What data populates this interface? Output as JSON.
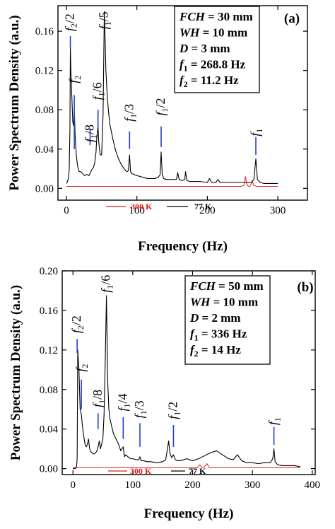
{
  "chart_data": [
    {
      "type": "line",
      "panel_label": "(a)",
      "xlabel": "Frequency (Hz)",
      "ylabel": "Power Spectrum Density (a.u.)",
      "xlim": [
        -12,
        342
      ],
      "ylim": [
        -0.012,
        0.186
      ],
      "xticks": [
        0,
        100,
        200,
        300
      ],
      "yticks": [
        0.0,
        0.04,
        0.08,
        0.12,
        0.16
      ],
      "ytick_labels": [
        "0.00",
        "0.04",
        "0.08",
        "0.12",
        "0.16"
      ],
      "grid": false,
      "info_lines": [
        {
          "italic": "FCH",
          "rest": " = 30 mm"
        },
        {
          "italic": "WH",
          "rest": " = 10 mm"
        },
        {
          "italic": "D",
          "rest": " = 3 mm"
        },
        {
          "italic": "f",
          "sub": "1",
          "rest": " = 268.8 Hz"
        },
        {
          "italic": "f",
          "sub": "2",
          "rest": " = 11.2 Hz"
        }
      ],
      "legend": [
        {
          "name": "300 K",
          "color": "#e31a1c"
        },
        {
          "name": "77 K",
          "color": "#000000"
        }
      ],
      "annotations": [
        {
          "label": "f",
          "sub": "2",
          "suffix": "/2",
          "x": 5.6,
          "line_y": [
            0.142,
            0.155
          ],
          "text_y": 0.16
        },
        {
          "label": "f",
          "sub": "2",
          "suffix": "",
          "x": 11.2,
          "line_y": [
            0.04,
            0.095
          ],
          "text_y": 0.107
        },
        {
          "label": "f",
          "sub": "1",
          "suffix": "/8",
          "x": 33.6,
          "line_y": [
            0.044,
            0.06
          ],
          "text_y": 0.047
        },
        {
          "label": "f",
          "sub": "1",
          "suffix": "/6",
          "x": 44.8,
          "line_y": [
            0.062,
            0.08
          ],
          "text_y": 0.09
        },
        {
          "label": "f",
          "sub": "1",
          "suffix": "/5",
          "x": 53.8,
          "line_y": null,
          "text_y": 0.162
        },
        {
          "label": "f",
          "sub": "1",
          "suffix": "/3",
          "x": 89.6,
          "line_y": [
            0.04,
            0.058
          ],
          "text_y": 0.068
        },
        {
          "label": "f",
          "sub": "1",
          "suffix": "/2",
          "x": 134.4,
          "line_y": [
            0.042,
            0.063
          ],
          "text_y": 0.074
        },
        {
          "label": "f",
          "sub": "1",
          "suffix": "",
          "x": 268.8,
          "line_y": [
            0.034,
            0.052
          ],
          "text_y": 0.053
        }
      ],
      "series": [
        {
          "name": "77 K",
          "color": "#000000",
          "x": [
            0,
            1,
            2,
            3,
            4,
            5,
            5.6,
            6.5,
            8,
            9,
            10,
            11.2,
            12.5,
            14,
            16,
            18,
            20,
            22,
            24,
            26,
            28,
            30,
            32,
            34,
            36,
            38,
            40,
            42,
            43,
            44.8,
            46,
            48,
            50,
            52,
            53.8,
            55,
            56,
            58,
            60,
            62,
            64,
            66,
            68,
            70,
            72,
            74,
            76,
            78,
            80,
            82,
            84,
            86,
            88,
            89.6,
            91,
            93,
            96,
            100,
            105,
            110,
            115,
            120,
            125,
            130,
            133,
            134.4,
            136,
            138,
            142,
            148,
            152,
            156,
            158,
            160,
            164,
            168,
            169,
            171,
            175,
            180,
            190,
            200,
            203,
            206,
            212,
            215,
            218,
            225,
            235,
            245,
            255,
            262,
            266,
            268.8,
            271,
            275,
            280,
            290,
            300
          ],
          "y": [
            0.005,
            0.006,
            0.008,
            0.011,
            0.02,
            0.06,
            0.143,
            0.115,
            0.088,
            0.068,
            0.064,
            0.08,
            0.052,
            0.034,
            0.022,
            0.017,
            0.017,
            0.016,
            0.014,
            0.013,
            0.014,
            0.014,
            0.013,
            0.016,
            0.019,
            0.021,
            0.025,
            0.037,
            0.05,
            0.063,
            0.046,
            0.034,
            0.034,
            0.075,
            0.18,
            0.15,
            0.12,
            0.093,
            0.076,
            0.064,
            0.057,
            0.05,
            0.044,
            0.038,
            0.034,
            0.03,
            0.027,
            0.024,
            0.022,
            0.02,
            0.018,
            0.017,
            0.018,
            0.034,
            0.017,
            0.015,
            0.014,
            0.013,
            0.012,
            0.011,
            0.01,
            0.01,
            0.01,
            0.011,
            0.014,
            0.037,
            0.014,
            0.01,
            0.009,
            0.009,
            0.009,
            0.009,
            0.016,
            0.009,
            0.008,
            0.009,
            0.017,
            0.008,
            0.007,
            0.007,
            0.007,
            0.006,
            0.01,
            0.006,
            0.006,
            0.009,
            0.006,
            0.006,
            0.006,
            0.006,
            0.006,
            0.006,
            0.009,
            0.03,
            0.009,
            0.006,
            0.005,
            0.005,
            0.005
          ]
        },
        {
          "name": "300 K",
          "color": "#e31a1c",
          "x": [
            0,
            50,
            100,
            150,
            200,
            240,
            248,
            252,
            254,
            256,
            258,
            260,
            262,
            264,
            266,
            270,
            280,
            290,
            300
          ],
          "y": [
            0.002,
            0.002,
            0.002,
            0.002,
            0.002,
            0.002,
            0.002,
            0.003,
            0.012,
            0.004,
            0.002,
            0.002,
            0.004,
            0.007,
            0.003,
            0.002,
            0.002,
            0.002,
            0.002
          ]
        }
      ]
    },
    {
      "type": "line",
      "panel_label": "(b)",
      "xlabel": "Frequency (Hz)",
      "ylabel": "Power Spectrum Density (a.u.)",
      "xlim": [
        -18,
        405
      ],
      "ylim": [
        -0.006,
        0.2
      ],
      "xticks": [
        0,
        100,
        200,
        300,
        400
      ],
      "yticks": [
        0.0,
        0.04,
        0.08,
        0.12,
        0.16,
        0.2
      ],
      "ytick_labels": [
        "0.00",
        "0.04",
        "0.08",
        "0.12",
        "0.16",
        "0.20"
      ],
      "grid": false,
      "info_lines": [
        {
          "italic": "FCH",
          "rest": " = 50 mm"
        },
        {
          "italic": "WH",
          "rest": " = 10 mm"
        },
        {
          "italic": "D",
          "rest": " = 2 mm"
        },
        {
          "italic": "f",
          "sub": "1",
          "rest": " = 336 Hz"
        },
        {
          "italic": "f",
          "sub": "2",
          "rest": " = 14 Hz"
        }
      ],
      "legend": [
        {
          "name": "300 K",
          "color": "#e31a1c"
        },
        {
          "name": "77 K",
          "color": "#000000"
        }
      ],
      "annotations": [
        {
          "label": "f",
          "sub": "2",
          "suffix": "/2",
          "x": 7,
          "line_y": [
            0.117,
            0.131
          ],
          "text_y": 0.137
        },
        {
          "label": "f",
          "sub": "2",
          "suffix": "",
          "x": 14,
          "line_y": [
            0.06,
            0.09
          ],
          "text_y": 0.098
        },
        {
          "label": "f",
          "sub": "1",
          "suffix": "/8",
          "x": 42,
          "line_y": [
            0.04,
            0.056
          ],
          "text_y": 0.062
        },
        {
          "label": "f",
          "sub": "1",
          "suffix": "/6",
          "x": 56,
          "line_y": null,
          "text_y": 0.178
        },
        {
          "label": "f",
          "sub": "1",
          "suffix": "/4",
          "x": 84,
          "line_y": [
            0.03,
            0.052
          ],
          "text_y": 0.058
        },
        {
          "label": "f",
          "sub": "1",
          "suffix": "/3",
          "x": 112,
          "line_y": [
            0.022,
            0.046
          ],
          "text_y": 0.051
        },
        {
          "label": "f",
          "sub": "1",
          "suffix": "/2",
          "x": 168,
          "line_y": [
            0.022,
            0.044
          ],
          "text_y": 0.05
        },
        {
          "label": "f",
          "sub": "1",
          "suffix": "",
          "x": 336,
          "line_y": [
            0.024,
            0.042
          ],
          "text_y": 0.044
        }
      ],
      "series": [
        {
          "name": "77 K",
          "color": "#000000",
          "x": [
            0,
            4,
            6,
            7,
            8,
            10,
            12,
            14,
            16,
            18,
            20,
            22,
            24,
            26,
            28,
            30,
            32,
            34,
            36,
            38,
            40,
            42,
            44,
            46,
            48,
            50,
            52,
            54,
            56,
            58,
            60,
            62,
            65,
            68,
            72,
            76,
            80,
            84,
            86,
            88,
            92,
            96,
            100,
            105,
            110,
            112,
            114,
            118,
            124,
            130,
            140,
            150,
            155,
            158,
            160,
            162,
            165,
            168,
            171,
            175,
            180,
            190,
            200,
            210,
            220,
            230,
            240,
            250,
            260,
            268,
            275,
            282,
            290,
            300,
            310,
            320,
            330,
            334,
            336,
            338,
            342,
            350,
            360,
            370,
            380
          ],
          "y": [
            0,
            0,
            0.002,
            0.01,
            0.12,
            0.1,
            0.06,
            0.055,
            0.042,
            0.033,
            0.025,
            0.022,
            0.024,
            0.03,
            0.02,
            0.017,
            0.016,
            0.015,
            0.015,
            0.016,
            0.018,
            0.022,
            0.028,
            0.02,
            0.025,
            0.03,
            0.055,
            0.11,
            0.175,
            0.09,
            0.06,
            0.05,
            0.042,
            0.035,
            0.03,
            0.025,
            0.018,
            0.022,
            0.012,
            0.014,
            0.012,
            0.01,
            0.01,
            0.009,
            0.009,
            0.012,
            0.008,
            0.008,
            0.007,
            0.007,
            0.006,
            0.007,
            0.009,
            0.02,
            0.028,
            0.016,
            0.011,
            0.014,
            0.009,
            0.008,
            0.008,
            0.01,
            0.008,
            0.01,
            0.013,
            0.016,
            0.018,
            0.014,
            0.01,
            0.009,
            0.014,
            0.008,
            0.006,
            0.006,
            0.005,
            0.006,
            0.006,
            0.01,
            0.02,
            0.007,
            0.004,
            0.003,
            0.003,
            0.003,
            0.002
          ]
        },
        {
          "name": "300 K",
          "color": "#e31a1c",
          "x": [
            0,
            50,
            100,
            150,
            200,
            208,
            212,
            216,
            220,
            224,
            228,
            240,
            260,
            300,
            340,
            380
          ],
          "y": [
            0.001,
            0.001,
            0.001,
            0.001,
            0.001,
            0.001,
            0.004,
            0.001,
            0.002,
            0.005,
            0.001,
            0.001,
            0.001,
            0.001,
            0.001,
            0.001
          ]
        }
      ]
    }
  ]
}
